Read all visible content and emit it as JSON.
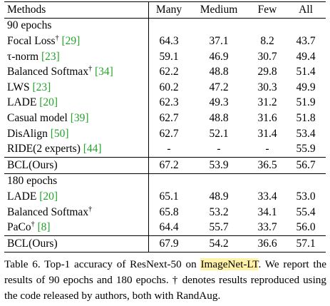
{
  "table": {
    "headers": [
      "Methods",
      "Many",
      "Medium",
      "Few",
      "All"
    ],
    "groups": [
      {
        "label": "90 epochs",
        "rows": [
          {
            "name": "Focal Loss",
            "dagger": true,
            "cite": "29",
            "many": "64.3",
            "medium": "37.1",
            "few": "8.2",
            "all": "43.7"
          },
          {
            "name": "τ-norm",
            "dagger": false,
            "cite": "23",
            "many": "59.1",
            "medium": "46.9",
            "few": "30.7",
            "all": "49.4"
          },
          {
            "name": "Balanced Softmax",
            "dagger": true,
            "cite": "34",
            "many": "62.2",
            "medium": "48.8",
            "few": "29.8",
            "all": "51.4"
          },
          {
            "name": "LWS",
            "dagger": false,
            "cite": "23",
            "many": "60.2",
            "medium": "47.2",
            "few": "30.3",
            "all": "49.9"
          },
          {
            "name": "LADE",
            "dagger": false,
            "cite": "20",
            "many": "62.3",
            "medium": "49.3",
            "few": "31.2",
            "all": "51.9"
          },
          {
            "name": "Casual model",
            "dagger": false,
            "cite": "39",
            "many": "62.7",
            "medium": "48.8",
            "few": "31.6",
            "all": "51.8"
          },
          {
            "name": "DisAlign",
            "dagger": false,
            "cite": "50",
            "many": "62.7",
            "medium": "52.1",
            "few": "31.4",
            "all": "53.4"
          },
          {
            "name": "RIDE(2 experts)",
            "dagger": false,
            "cite": "44",
            "many": "-",
            "medium": "-",
            "few": "-",
            "all": "55.9"
          }
        ],
        "ours": {
          "name": "BCL(Ours)",
          "many": "67.2",
          "medium": "53.9",
          "few": "36.5",
          "all": "56.7"
        }
      },
      {
        "label": "180 epochs",
        "rows": [
          {
            "name": "LADE",
            "dagger": false,
            "cite": "20",
            "many": "65.1",
            "medium": "48.9",
            "few": "33.4",
            "all": "53.0"
          },
          {
            "name": "Balanced Softmax",
            "dagger": true,
            "cite": "",
            "many": "65.8",
            "medium": "53.2",
            "few": "34.1",
            "all": "55.4"
          },
          {
            "name": "PaCo",
            "dagger": true,
            "cite": "8",
            "many": "64.4",
            "medium": "55.7",
            "few": "33.7",
            "all": "56.0"
          }
        ],
        "ours": {
          "name": "BCL(Ours)",
          "many": "67.9",
          "medium": "54.2",
          "few": "36.6",
          "all": "57.1"
        }
      }
    ]
  },
  "caption": {
    "prefix": "Table 6. Top-1 accuracy of ResNext-50 on ",
    "highlight": "ImageNet-LT",
    "suffix": ". We report the results of 90 epochs and 180 epochs. † denotes results reproduced using the code released by authors, both with RandAug."
  },
  "colors": {
    "citation": "#22a32a",
    "highlight": "#fff2a8"
  }
}
